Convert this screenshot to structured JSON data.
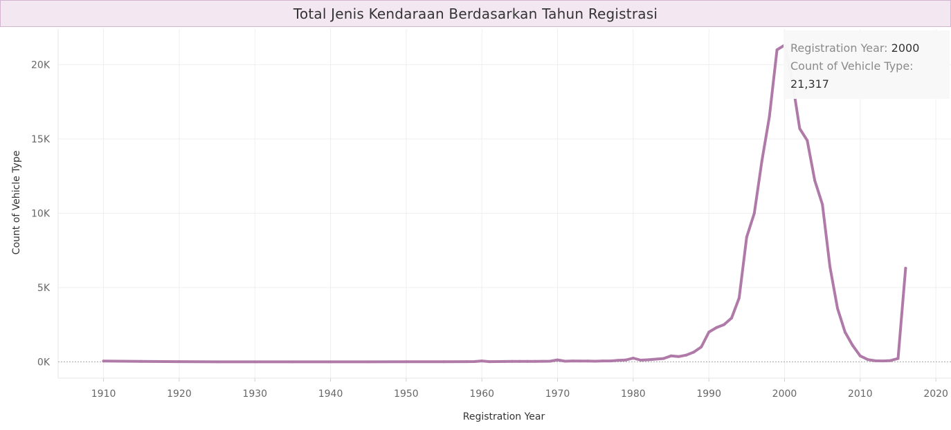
{
  "chart_data": {
    "type": "line",
    "title": "Total Jenis Kendaraan Berdasarkan Tahun Registrasi",
    "xlabel": "Registration Year",
    "ylabel": "Count of Vehicle Type",
    "xlim": [
      1904,
      2022
    ],
    "ylim": [
      -1100,
      22400
    ],
    "x_ticks": [
      1910,
      1920,
      1930,
      1940,
      1950,
      1960,
      1970,
      1980,
      1990,
      2000,
      2010,
      2020
    ],
    "x_tick_labels": [
      "1910",
      "1920",
      "1930",
      "1940",
      "1950",
      "1960",
      "1970",
      "1980",
      "1990",
      "2000",
      "2010",
      "2020"
    ],
    "y_ticks": [
      0,
      5000,
      10000,
      15000,
      20000
    ],
    "y_tick_labels": [
      "0K",
      "5K",
      "10K",
      "15K",
      "20K"
    ],
    "grid": true,
    "line_color": "#b07aa8",
    "series": [
      {
        "x": [
          1910,
          1915,
          1920,
          1925,
          1930,
          1935,
          1940,
          1945,
          1950,
          1955,
          1958,
          1959,
          1960,
          1961,
          1962,
          1963,
          1964,
          1965,
          1966,
          1967,
          1968,
          1969,
          1970,
          1971,
          1972,
          1973,
          1974,
          1975,
          1976,
          1977,
          1978,
          1979,
          1980,
          1981,
          1982,
          1983,
          1984,
          1985,
          1986,
          1987,
          1988,
          1989,
          1990,
          1991,
          1992,
          1993,
          1994,
          1995,
          1996,
          1997,
          1998,
          1999,
          2000,
          2001,
          2002,
          2003,
          2004,
          2005,
          2006,
          2007,
          2008,
          2009,
          2010,
          2011,
          2012,
          2013,
          2014,
          2015,
          2016
        ],
        "values": [
          50,
          30,
          10,
          0,
          0,
          0,
          0,
          0,
          5,
          5,
          10,
          15,
          60,
          10,
          15,
          20,
          25,
          30,
          30,
          30,
          35,
          40,
          130,
          40,
          60,
          50,
          50,
          40,
          60,
          60,
          100,
          120,
          250,
          110,
          140,
          180,
          220,
          400,
          350,
          450,
          650,
          1000,
          2000,
          2300,
          2500,
          2950,
          4300,
          8400,
          10000,
          13500,
          16500,
          21000,
          21317,
          19000,
          15700,
          14900,
          12200,
          10600,
          6400,
          3600,
          2000,
          1100,
          400,
          150,
          70,
          60,
          80,
          220,
          6300
        ]
      }
    ],
    "tooltip": {
      "year_label": "Registration Year:",
      "year_value": "2000",
      "count_label": "Count of Vehicle Type:",
      "count_value": "21,317"
    }
  }
}
